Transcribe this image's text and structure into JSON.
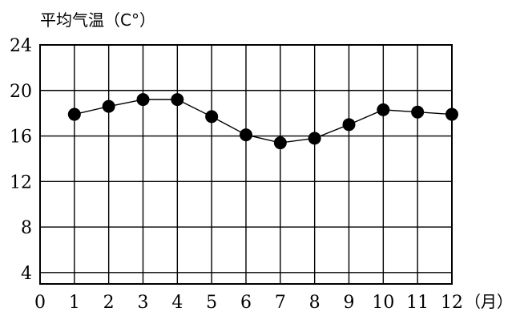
{
  "chart_data": {
    "type": "line",
    "ylabel": "平均气温（C°）",
    "xunit": "（月）",
    "x_zero_label": "0",
    "x": [
      1,
      2,
      3,
      4,
      5,
      6,
      7,
      8,
      9,
      10,
      11,
      12
    ],
    "x_tick_labels": [
      "1",
      "2",
      "3",
      "4",
      "5",
      "6",
      "7",
      "8",
      "9",
      "10",
      "11",
      "12"
    ],
    "values": [
      17.9,
      18.6,
      19.2,
      19.2,
      17.7,
      16.1,
      15.4,
      15.8,
      17.0,
      18.3,
      18.1,
      17.9
    ],
    "yticks": [
      4,
      8,
      12,
      16,
      20,
      24
    ],
    "ylim": [
      3,
      24
    ],
    "xlim": [
      0,
      12
    ],
    "grid": true,
    "legend": "none"
  }
}
